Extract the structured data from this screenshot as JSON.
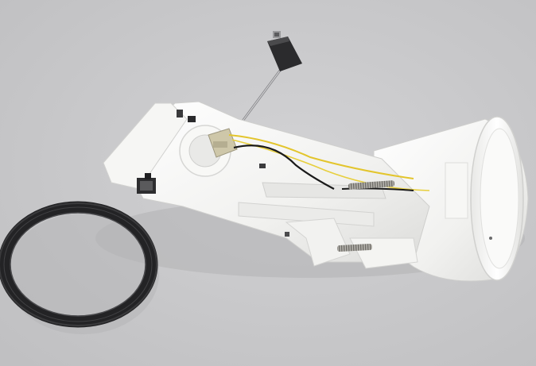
{
  "photo": {
    "subject": "fuel-pump-assembly",
    "parts": [
      "float-arm",
      "fuel-level-float",
      "pump-module-bracket",
      "electrical-connector",
      "yellow-wire",
      "black-wire",
      "tension-spring",
      "reservoir-bucket",
      "sealing-ring"
    ]
  },
  "colors": {
    "background": "#c9c9cb",
    "plastic": "#f4f4f2",
    "plastic_shadow": "#d9d9d7",
    "seal": "#2a2a2c",
    "wire_yellow": "#e2c52a",
    "wire_black": "#1a1a1a",
    "float": "#2c2c2e",
    "spring": "#8a8a85",
    "connector": "#c8c1a4"
  }
}
